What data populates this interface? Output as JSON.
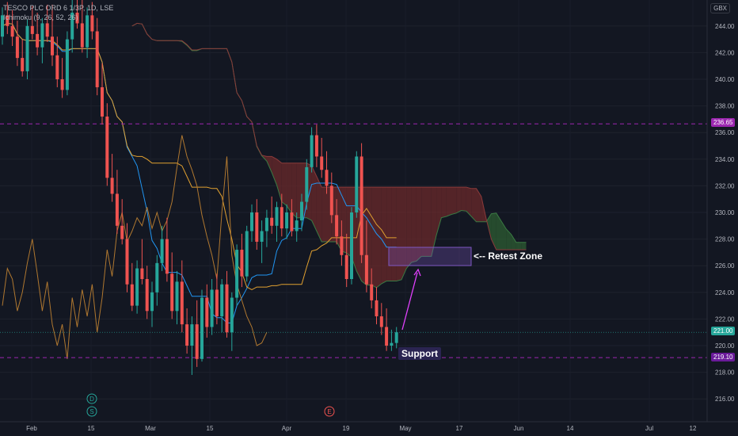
{
  "legend": {
    "line1": "TESCO PLC ORD 6 1/3P, 1D, LSE",
    "line2": "Ichimoku (9, 26, 52, 26)"
  },
  "axis": {
    "currency": "GBX"
  },
  "annotations": {
    "retest": "<-- Retest Zone",
    "support": "Support"
  },
  "price_tags": {
    "resistance": "236.65",
    "current": "221.00",
    "support": "219.10"
  },
  "event_markers": [
    "D",
    "S",
    "E"
  ],
  "colors": {
    "background": "#131722",
    "up": "#26a69a",
    "down": "#ef5350",
    "tenkan": "#2196f3",
    "kijun": "#e0a030",
    "chikou": "#b07830",
    "cloud_bull": "#2e5e33",
    "cloud_bear": "#6b2a2b",
    "dashed": "#9c27b0",
    "zone": "#7e57c2"
  },
  "chart_data": {
    "type": "candlestick",
    "title": "TESCO PLC ORD 6 1/3P, 1D, LSE",
    "ylim": [
      214.5,
      246
    ],
    "yticks": [
      216,
      218,
      220,
      222,
      224,
      226,
      228,
      230,
      232,
      234,
      236,
      238,
      240,
      242,
      244
    ],
    "xtick_labels": [
      "Feb",
      "15",
      "Mar",
      "15",
      "Apr",
      "19",
      "May",
      "17",
      "Jun",
      "14",
      "Jul",
      "12"
    ],
    "horizontal_levels": [
      236.65,
      219.1
    ],
    "current_price": 221.0,
    "candles": [
      {
        "o": 243.2,
        "h": 245.4,
        "l": 242.6,
        "c": 244.8
      },
      {
        "o": 244.8,
        "h": 245.8,
        "l": 243.4,
        "c": 244.0
      },
      {
        "o": 244.0,
        "h": 245.2,
        "l": 242.5,
        "c": 243.2
      },
      {
        "o": 243.2,
        "h": 244.4,
        "l": 241.0,
        "c": 241.6
      },
      {
        "o": 241.6,
        "h": 243.0,
        "l": 240.2,
        "c": 240.6
      },
      {
        "o": 240.6,
        "h": 244.5,
        "l": 240.0,
        "c": 244.0
      },
      {
        "o": 244.0,
        "h": 245.5,
        "l": 243.0,
        "c": 243.4
      },
      {
        "o": 243.4,
        "h": 245.0,
        "l": 241.8,
        "c": 242.4
      },
      {
        "o": 242.4,
        "h": 244.6,
        "l": 241.2,
        "c": 244.2
      },
      {
        "o": 244.2,
        "h": 245.6,
        "l": 242.8,
        "c": 243.2
      },
      {
        "o": 243.2,
        "h": 245.6,
        "l": 241.0,
        "c": 241.8
      },
      {
        "o": 241.8,
        "h": 243.2,
        "l": 239.4,
        "c": 240.0
      },
      {
        "o": 240.0,
        "h": 241.6,
        "l": 238.6,
        "c": 239.2
      },
      {
        "o": 239.2,
        "h": 243.6,
        "l": 238.8,
        "c": 243.0
      },
      {
        "o": 243.0,
        "h": 246.0,
        "l": 242.0,
        "c": 245.0
      },
      {
        "o": 245.0,
        "h": 246.0,
        "l": 243.8,
        "c": 244.2
      },
      {
        "o": 244.2,
        "h": 246.0,
        "l": 242.0,
        "c": 242.4
      },
      {
        "o": 242.4,
        "h": 245.4,
        "l": 241.6,
        "c": 244.8
      },
      {
        "o": 244.8,
        "h": 245.8,
        "l": 243.0,
        "c": 243.6
      },
      {
        "o": 243.6,
        "h": 244.6,
        "l": 238.8,
        "c": 239.4
      },
      {
        "o": 239.4,
        "h": 241.2,
        "l": 236.6,
        "c": 237.2
      },
      {
        "o": 237.2,
        "h": 238.2,
        "l": 232.0,
        "c": 232.6
      },
      {
        "o": 232.6,
        "h": 234.4,
        "l": 230.8,
        "c": 231.4
      },
      {
        "o": 231.4,
        "h": 233.2,
        "l": 228.4,
        "c": 229.0
      },
      {
        "o": 229.0,
        "h": 231.0,
        "l": 227.6,
        "c": 228.0
      },
      {
        "o": 228.0,
        "h": 229.2,
        "l": 224.0,
        "c": 224.6
      },
      {
        "o": 224.6,
        "h": 226.2,
        "l": 222.6,
        "c": 223.0
      },
      {
        "o": 223.0,
        "h": 226.4,
        "l": 222.4,
        "c": 225.8
      },
      {
        "o": 225.8,
        "h": 228.0,
        "l": 224.6,
        "c": 225.0
      },
      {
        "o": 225.0,
        "h": 226.0,
        "l": 222.0,
        "c": 222.6
      },
      {
        "o": 222.6,
        "h": 224.8,
        "l": 221.4,
        "c": 224.0
      },
      {
        "o": 224.0,
        "h": 226.8,
        "l": 223.0,
        "c": 226.2
      },
      {
        "o": 226.2,
        "h": 229.0,
        "l": 225.6,
        "c": 228.0
      },
      {
        "o": 228.0,
        "h": 229.6,
        "l": 224.8,
        "c": 225.4
      },
      {
        "o": 225.4,
        "h": 227.0,
        "l": 222.0,
        "c": 222.6
      },
      {
        "o": 222.6,
        "h": 225.6,
        "l": 221.6,
        "c": 224.8
      },
      {
        "o": 224.8,
        "h": 226.4,
        "l": 221.0,
        "c": 221.6
      },
      {
        "o": 221.6,
        "h": 222.8,
        "l": 219.4,
        "c": 220.0
      },
      {
        "o": 220.0,
        "h": 222.2,
        "l": 217.8,
        "c": 221.6
      },
      {
        "o": 221.6,
        "h": 223.4,
        "l": 218.4,
        "c": 219.0
      },
      {
        "o": 219.0,
        "h": 224.2,
        "l": 218.8,
        "c": 223.6
      },
      {
        "o": 223.6,
        "h": 224.6,
        "l": 220.6,
        "c": 221.4
      },
      {
        "o": 221.4,
        "h": 225.0,
        "l": 220.8,
        "c": 224.2
      },
      {
        "o": 224.2,
        "h": 225.4,
        "l": 221.6,
        "c": 222.2
      },
      {
        "o": 222.2,
        "h": 225.0,
        "l": 221.0,
        "c": 224.6
      },
      {
        "o": 224.6,
        "h": 225.6,
        "l": 220.6,
        "c": 221.0
      },
      {
        "o": 221.0,
        "h": 224.0,
        "l": 219.6,
        "c": 223.6
      },
      {
        "o": 223.6,
        "h": 227.6,
        "l": 223.0,
        "c": 227.2
      },
      {
        "o": 227.2,
        "h": 228.4,
        "l": 224.4,
        "c": 225.2
      },
      {
        "o": 225.2,
        "h": 229.0,
        "l": 224.8,
        "c": 228.6
      },
      {
        "o": 228.6,
        "h": 230.6,
        "l": 227.8,
        "c": 230.0
      },
      {
        "o": 230.0,
        "h": 231.0,
        "l": 227.2,
        "c": 227.8
      },
      {
        "o": 227.8,
        "h": 229.4,
        "l": 226.2,
        "c": 228.6
      },
      {
        "o": 228.6,
        "h": 230.2,
        "l": 227.4,
        "c": 229.6
      },
      {
        "o": 229.6,
        "h": 231.2,
        "l": 228.4,
        "c": 229.0
      },
      {
        "o": 229.0,
        "h": 230.8,
        "l": 227.8,
        "c": 230.4
      },
      {
        "o": 230.4,
        "h": 231.4,
        "l": 228.2,
        "c": 228.8
      },
      {
        "o": 228.8,
        "h": 230.6,
        "l": 228.0,
        "c": 230.0
      },
      {
        "o": 230.0,
        "h": 231.0,
        "l": 228.2,
        "c": 228.6
      },
      {
        "o": 228.6,
        "h": 230.0,
        "l": 227.8,
        "c": 229.4
      },
      {
        "o": 229.4,
        "h": 231.4,
        "l": 228.6,
        "c": 230.8
      },
      {
        "o": 230.8,
        "h": 234.0,
        "l": 230.2,
        "c": 233.4
      },
      {
        "o": 233.4,
        "h": 236.4,
        "l": 233.0,
        "c": 235.8
      },
      {
        "o": 235.8,
        "h": 236.6,
        "l": 233.4,
        "c": 234.2
      },
      {
        "o": 234.2,
        "h": 235.6,
        "l": 232.6,
        "c": 233.2
      },
      {
        "o": 233.2,
        "h": 234.6,
        "l": 231.4,
        "c": 232.0
      },
      {
        "o": 232.0,
        "h": 233.0,
        "l": 229.2,
        "c": 229.8
      },
      {
        "o": 229.8,
        "h": 231.0,
        "l": 227.6,
        "c": 228.2
      },
      {
        "o": 228.2,
        "h": 229.4,
        "l": 226.0,
        "c": 226.8
      },
      {
        "o": 226.8,
        "h": 228.4,
        "l": 224.4,
        "c": 225.0
      },
      {
        "o": 225.0,
        "h": 230.4,
        "l": 224.6,
        "c": 230.0
      },
      {
        "o": 230.0,
        "h": 234.6,
        "l": 229.6,
        "c": 234.2
      },
      {
        "o": 234.2,
        "h": 235.2,
        "l": 226.2,
        "c": 226.8
      },
      {
        "o": 226.8,
        "h": 229.4,
        "l": 224.0,
        "c": 224.6
      },
      {
        "o": 224.6,
        "h": 225.8,
        "l": 222.8,
        "c": 223.4
      },
      {
        "o": 223.4,
        "h": 224.4,
        "l": 221.6,
        "c": 222.2
      },
      {
        "o": 222.2,
        "h": 223.2,
        "l": 220.8,
        "c": 221.4
      },
      {
        "o": 221.4,
        "h": 222.8,
        "l": 219.6,
        "c": 220.0
      },
      {
        "o": 220.0,
        "h": 221.2,
        "l": 219.6,
        "c": 220.2
      },
      {
        "o": 220.2,
        "h": 221.4,
        "l": 219.8,
        "c": 221.0
      }
    ]
  }
}
